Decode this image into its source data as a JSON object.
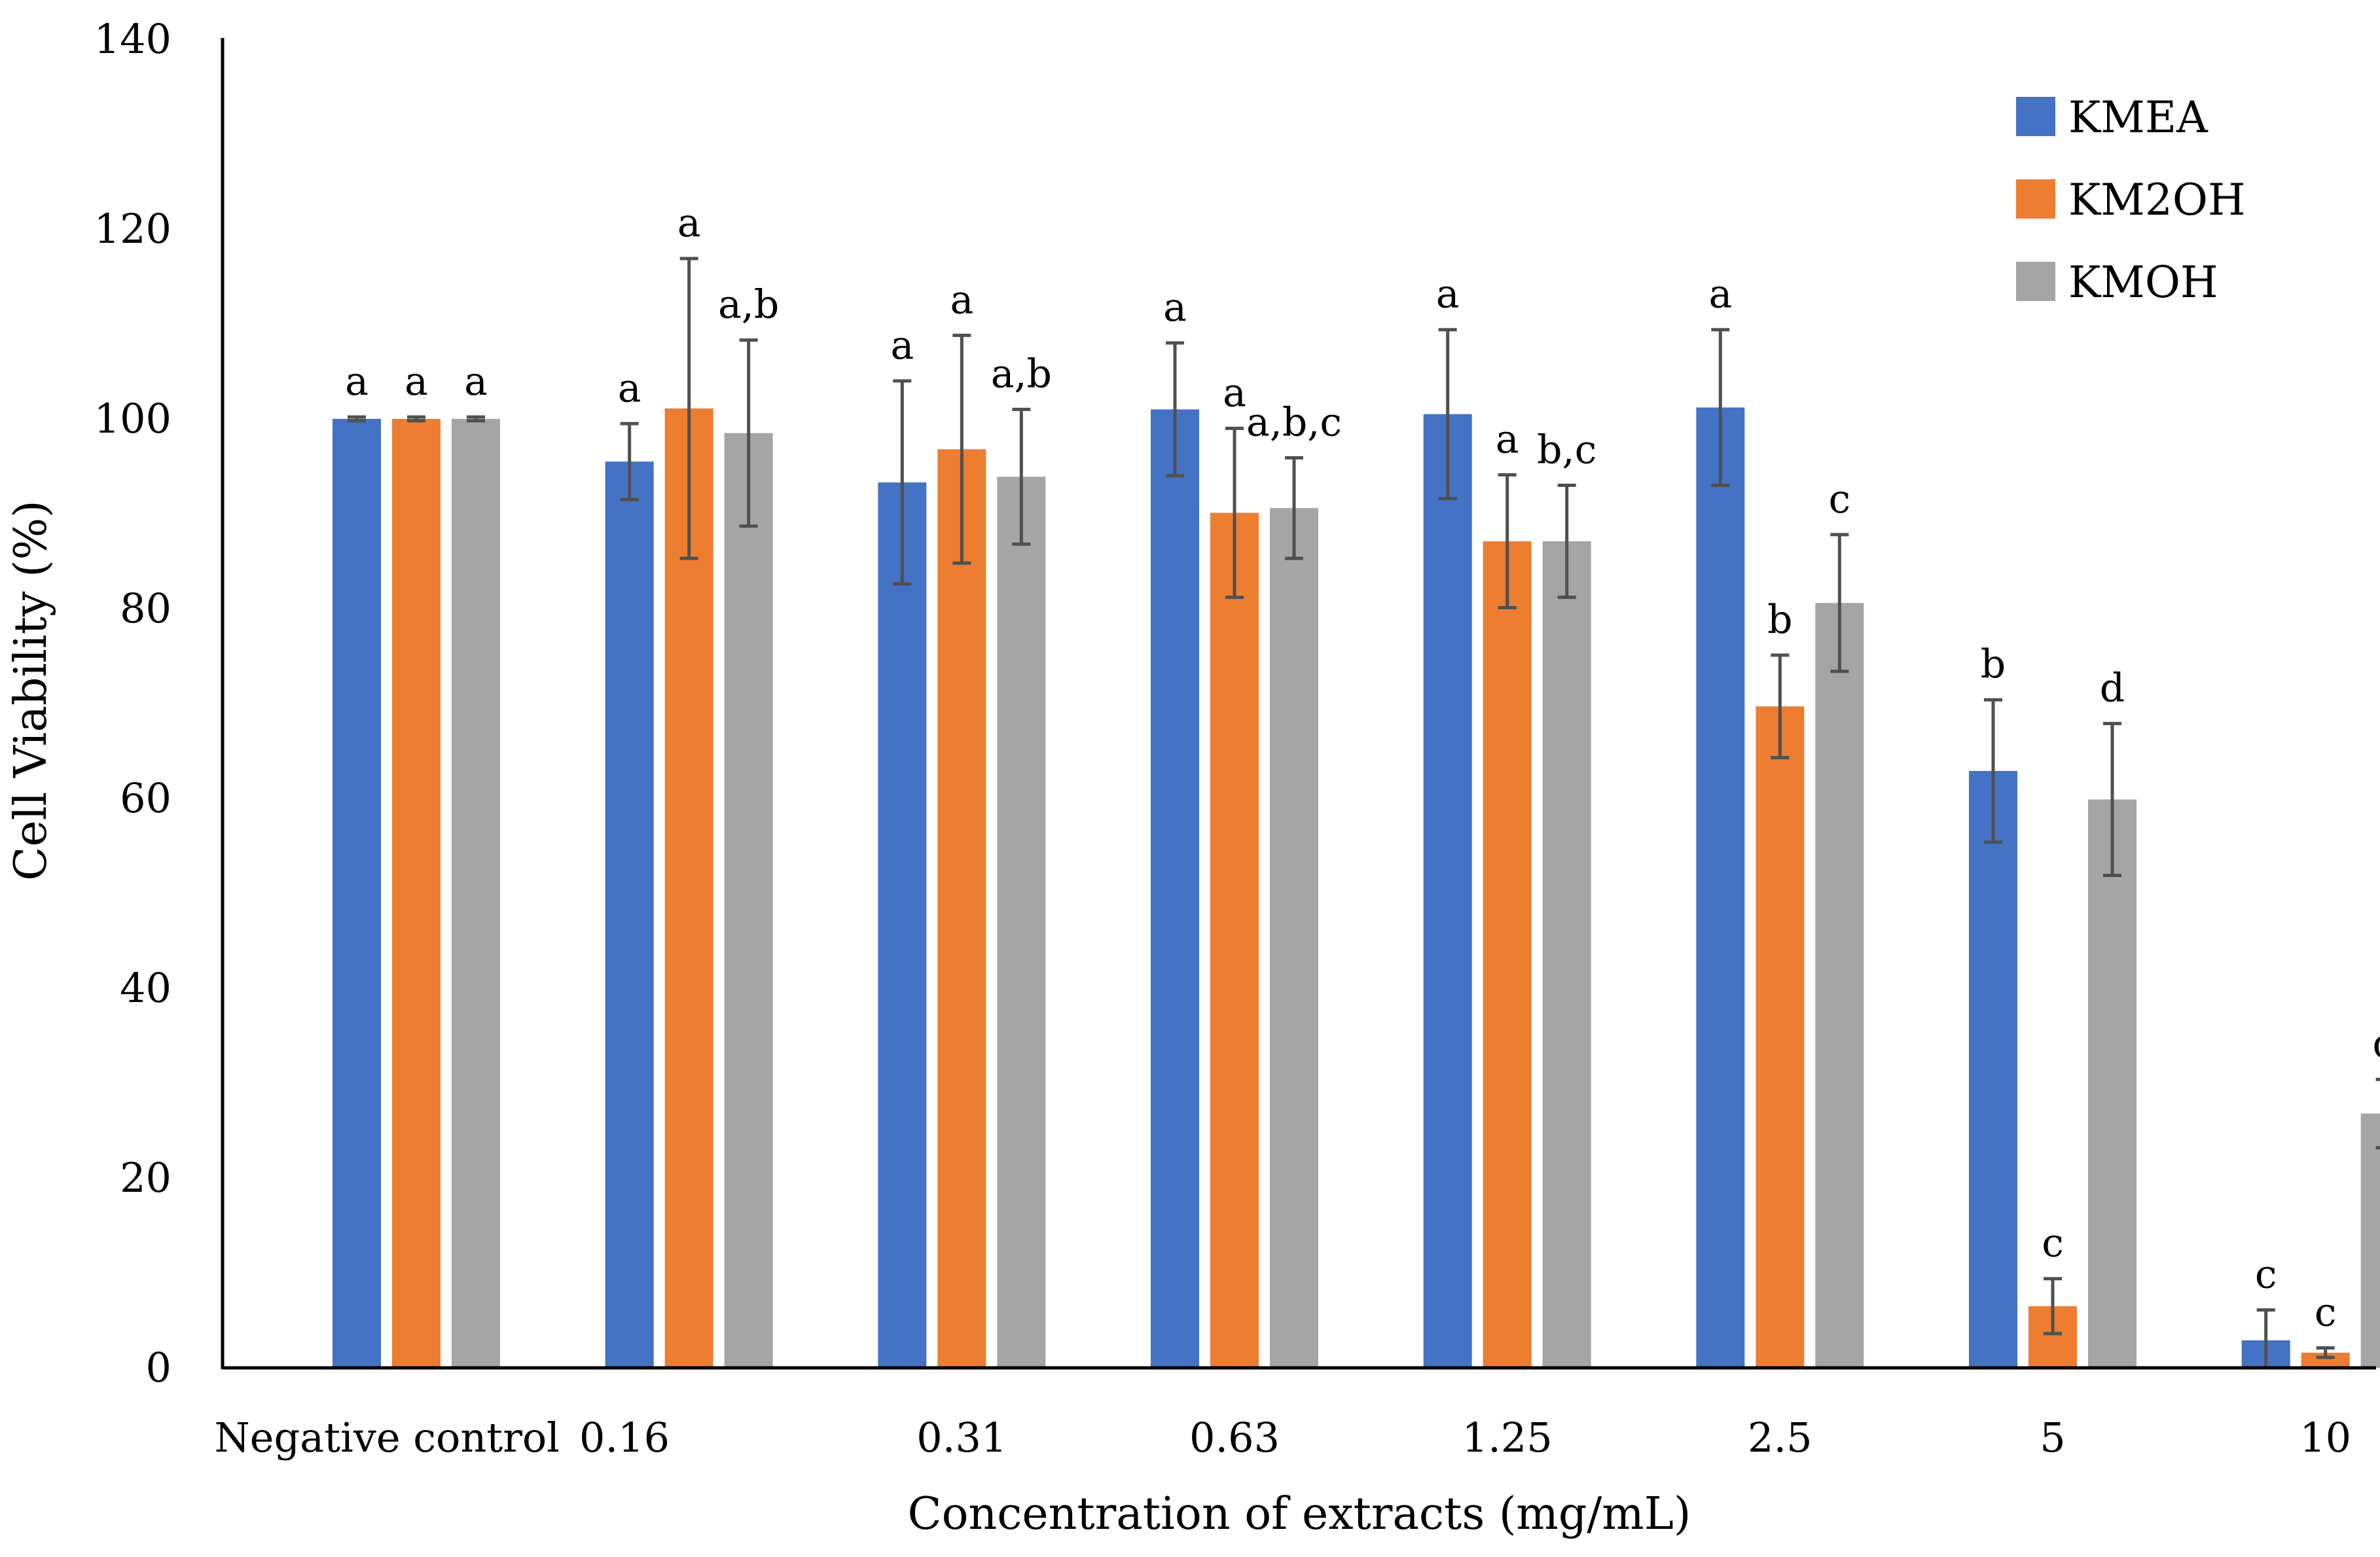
{
  "chart_data": {
    "type": "bar",
    "xlabel": "Concentration of extracts (mg/mL)",
    "ylabel": "Cell Viability (%)",
    "ylim": [
      0,
      140
    ],
    "yticks": [
      0,
      20,
      40,
      60,
      80,
      100,
      120,
      140
    ],
    "grid": false,
    "legend_position": "top-right",
    "categories": [
      "Negative control",
      "0.16",
      "0.31",
      "0.63",
      "1.25",
      "2.5",
      "5",
      "10"
    ],
    "series": [
      {
        "name": "KMEA",
        "color": "#4472c4",
        "values": [
          100,
          95.5,
          93.3,
          101,
          100.5,
          101.2,
          62.9,
          2.9
        ],
        "errors": [
          0.2,
          4,
          10.7,
          7,
          8.9,
          8.2,
          7.5,
          3.2
        ],
        "labels": [
          "a",
          "a",
          "a",
          "a",
          "a",
          "a",
          "b",
          "c"
        ]
      },
      {
        "name": "KM2OH",
        "color": "#ed7d31",
        "values": [
          100,
          101.1,
          96.8,
          90.1,
          87.1,
          69.7,
          6.5,
          1.6
        ],
        "errors": [
          0.2,
          15.8,
          12,
          8.9,
          7,
          5.4,
          2.9,
          0.5
        ],
        "labels": [
          "a",
          "a",
          "a",
          "a",
          "a",
          "b",
          "c",
          "c"
        ]
      },
      {
        "name": "KMOH",
        "color": "#a5a5a5",
        "values": [
          100,
          98.5,
          93.9,
          90.6,
          87.1,
          80.6,
          59.9,
          26.8
        ],
        "errors": [
          0.2,
          9.8,
          7.1,
          5.3,
          5.9,
          7.2,
          8,
          3.6
        ],
        "labels": [
          "a",
          "a,b",
          "a,b",
          "a,b,c",
          "b,c",
          "c",
          "d",
          "d"
        ]
      }
    ]
  }
}
